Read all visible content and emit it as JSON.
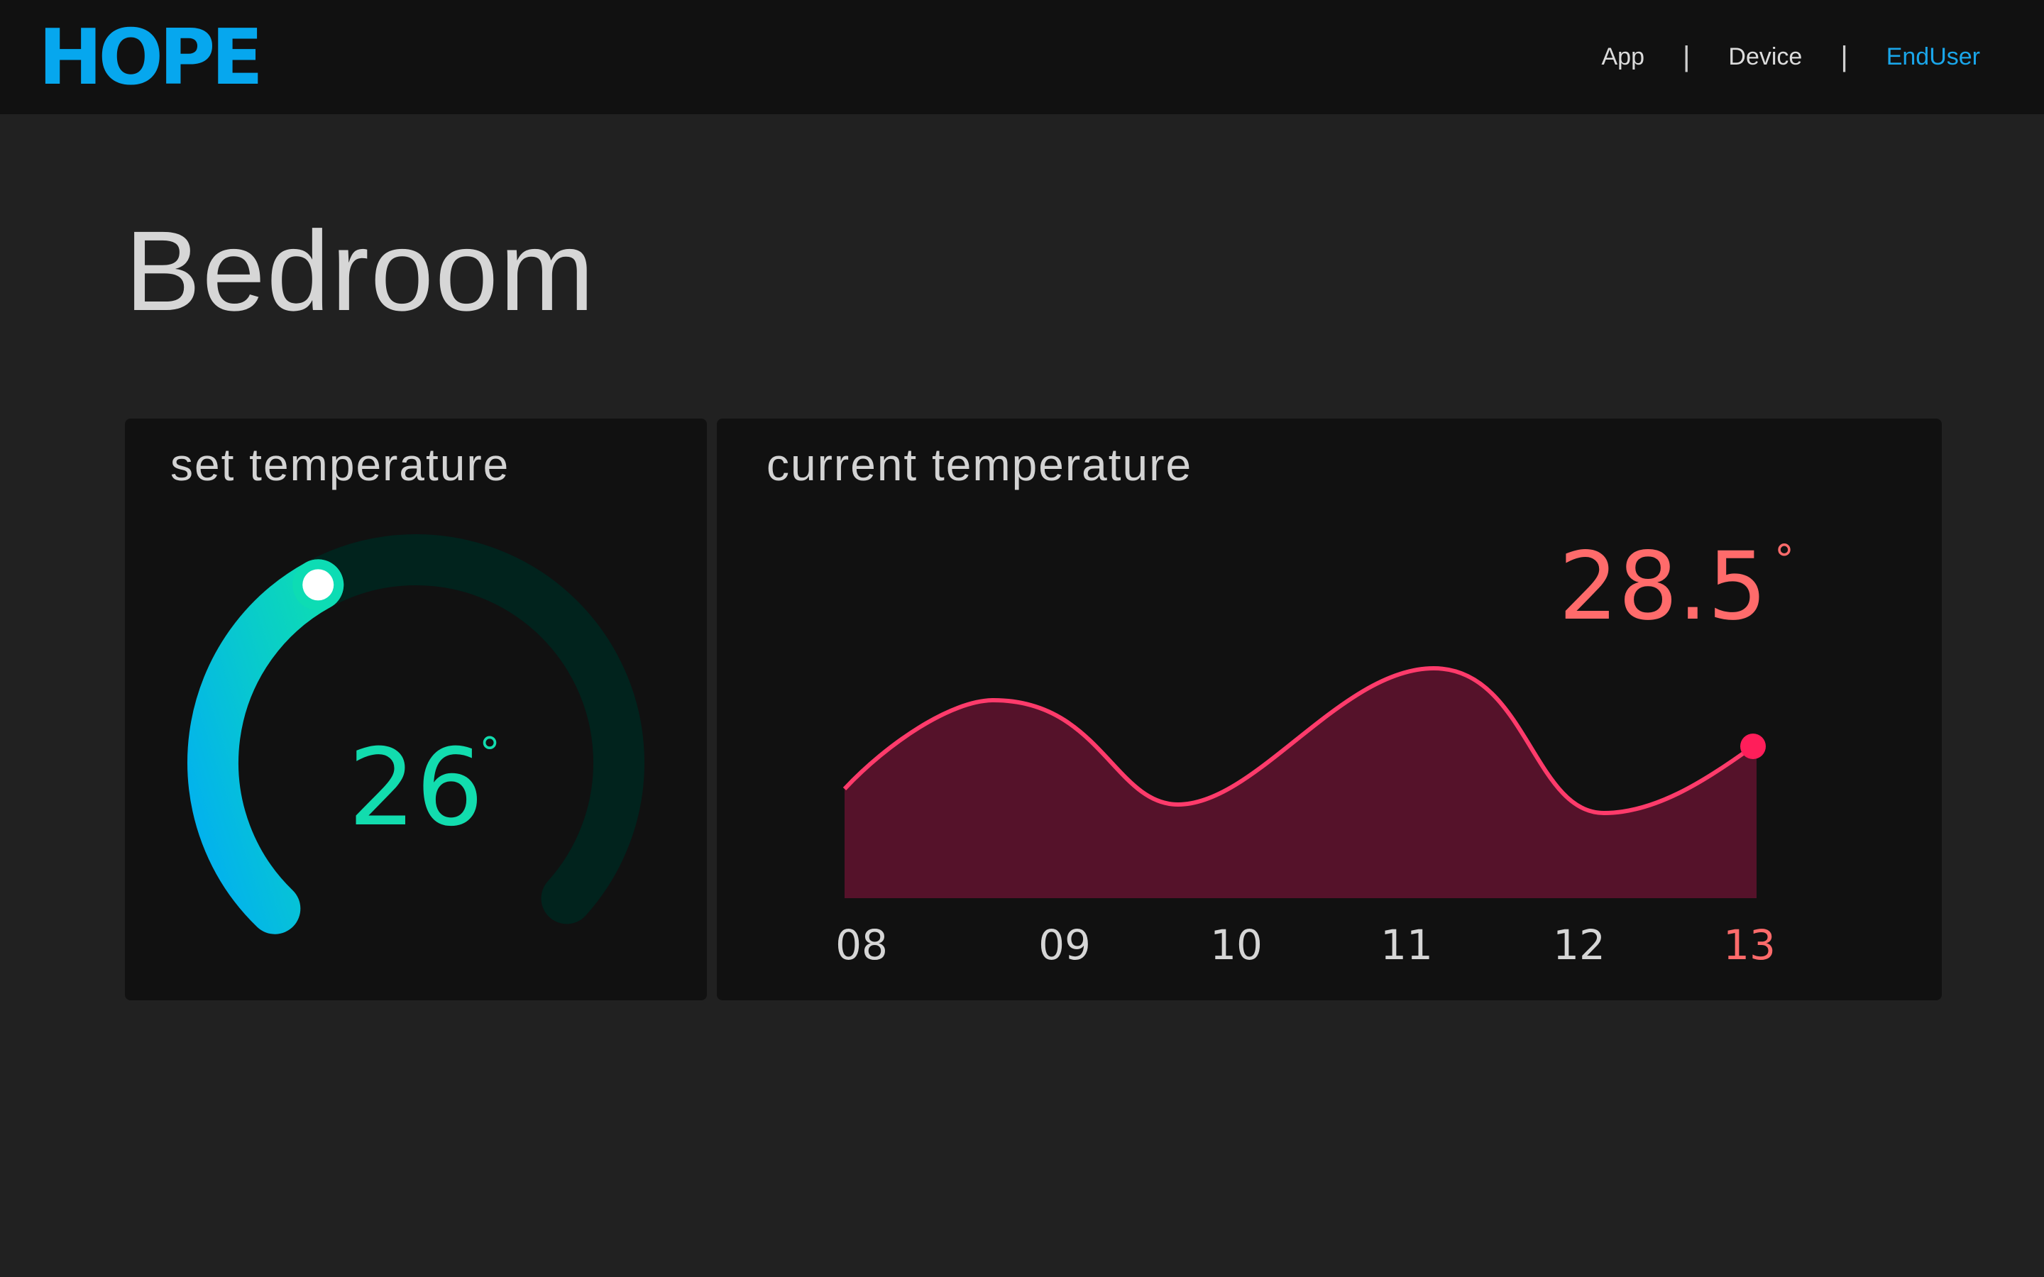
{
  "header": {
    "logo_text": "HOPE",
    "nav": [
      {
        "label": "App",
        "active": false
      },
      {
        "label": "Device",
        "active": false
      },
      {
        "label": "EndUser",
        "active": true
      }
    ],
    "separator": "|"
  },
  "page": {
    "title": "Bedroom"
  },
  "set_temperature": {
    "title": "set temperature",
    "value": "26",
    "unit": "°",
    "level_fraction": 0.4
  },
  "current_temperature": {
    "title": "current temperature",
    "value": "28.5",
    "unit": "°"
  },
  "chart_data": {
    "type": "area",
    "categories": [
      "08",
      "09",
      "10",
      "11",
      "12",
      "13"
    ],
    "highlight_category": "13",
    "title": "",
    "xlabel": "",
    "ylabel": "",
    "grid": false
  },
  "colors": {
    "accent_blue": "#1aa6ea",
    "gauge_start": "#02b0f0",
    "gauge_end": "#0ddcb4",
    "gauge_track": "#01231d",
    "temp_green": "#12dcae",
    "current_red": "#ff6b6b",
    "area_fill": "#55122a",
    "line_pink": "#ff3b6b"
  }
}
